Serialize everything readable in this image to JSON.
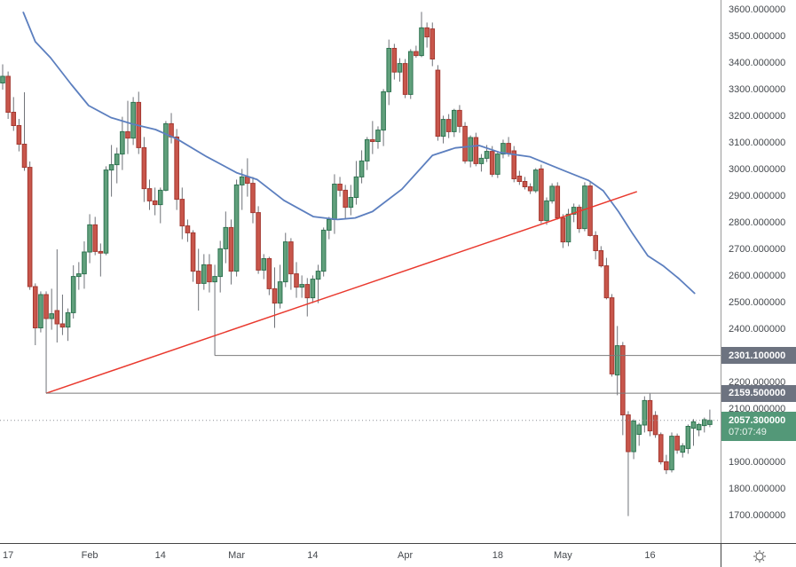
{
  "colors": {
    "up_fill": "#61a07c",
    "up_stroke": "#2e7350",
    "down_fill": "#c8564b",
    "down_stroke": "#a43931",
    "wick": "#6f7278",
    "ma_line": "#5c7fbf",
    "trendline": "#e9392e",
    "ray_line": "#7b7b7b",
    "last_price_line": "#8c8f96",
    "badge_gray": "#6d7380",
    "badge_green": "#539878",
    "axis_text": "#45494e"
  },
  "chart_data": {
    "type": "candlestick",
    "title": "",
    "ylim": [
      1597,
      3637
    ],
    "y_axis": {
      "tick_decimals": 6,
      "ticks": [
        3600,
        3500,
        3400,
        3300,
        3200,
        3100,
        3000,
        2900,
        2800,
        2700,
        2600,
        2500,
        2400,
        2200,
        2100,
        1900,
        1800,
        1700
      ]
    },
    "x_axis": {
      "labels": [
        {
          "text": "17",
          "i": 1
        },
        {
          "text": "Feb",
          "i": 16
        },
        {
          "text": "14",
          "i": 29
        },
        {
          "text": "Mar",
          "i": 43
        },
        {
          "text": "14",
          "i": 57
        },
        {
          "text": "Apr",
          "i": 74
        },
        {
          "text": "18",
          "i": 91
        },
        {
          "text": "May",
          "i": 103
        },
        {
          "text": "16",
          "i": 119
        }
      ]
    },
    "candles_ohlc": [
      [
        3325,
        3395,
        3300,
        3350
      ],
      [
        3350,
        3368,
        3190,
        3215
      ],
      [
        3215,
        3272,
        3145,
        3165
      ],
      [
        3165,
        3190,
        3068,
        3095
      ],
      [
        3095,
        3290,
        2995,
        3008
      ],
      [
        3008,
        3030,
        2548,
        2560
      ],
      [
        2560,
        2572,
        2340,
        2405
      ],
      [
        2405,
        2542,
        2388,
        2530
      ],
      [
        2530,
        2542,
        2159.5,
        2440
      ],
      [
        2440,
        2552,
        2398,
        2458
      ],
      [
        2470,
        2700,
        2350,
        2420
      ],
      [
        2420,
        2530,
        2378,
        2408
      ],
      [
        2408,
        2478,
        2356,
        2462
      ],
      [
        2462,
        2640,
        2440,
        2598
      ],
      [
        2598,
        2652,
        2548,
        2608
      ],
      [
        2608,
        2730,
        2552,
        2690
      ],
      [
        2690,
        2832,
        2648,
        2792
      ],
      [
        2792,
        2822,
        2678,
        2692
      ],
      [
        2692,
        2722,
        2598,
        2686
      ],
      [
        2686,
        3012,
        2678,
        2998
      ],
      [
        2998,
        3092,
        2898,
        3018
      ],
      [
        3018,
        3082,
        2948,
        3058
      ],
      [
        3058,
        3198,
        2998,
        3142
      ],
      [
        3142,
        3258,
        3058,
        3118
      ],
      [
        3118,
        3272,
        3092,
        3252
      ],
      [
        3252,
        3292,
        3058,
        3082
      ],
      [
        3082,
        3122,
        2878,
        2928
      ],
      [
        2928,
        2962,
        2848,
        2882
      ],
      [
        2882,
        2932,
        2828,
        2868
      ],
      [
        2868,
        2932,
        2798,
        2922
      ],
      [
        2922,
        3182,
        2918,
        3172
      ],
      [
        3172,
        3212,
        3098,
        3122
      ],
      [
        3122,
        3152,
        2848,
        2888
      ],
      [
        2888,
        2932,
        2738,
        2788
      ],
      [
        2788,
        2812,
        2728,
        2762
      ],
      [
        2762,
        2772,
        2578,
        2618
      ],
      [
        2618,
        2702,
        2470,
        2572
      ],
      [
        2572,
        2682,
        2548,
        2642
      ],
      [
        2642,
        2682,
        2538,
        2578
      ],
      [
        2578,
        2642,
        2301.1,
        2598
      ],
      [
        2598,
        2732,
        2538,
        2702
      ],
      [
        2702,
        2842,
        2648,
        2782
      ],
      [
        2782,
        2812,
        2568,
        2618
      ],
      [
        2618,
        2962,
        2598,
        2942
      ],
      [
        2942,
        3002,
        2848,
        2972
      ],
      [
        2972,
        3042,
        2898,
        2948
      ],
      [
        2948,
        2972,
        2798,
        2838
      ],
      [
        2838,
        2862,
        2608,
        2622
      ],
      [
        2622,
        2682,
        2588,
        2665
      ],
      [
        2665,
        2672,
        2528,
        2552
      ],
      [
        2552,
        2632,
        2405,
        2498
      ],
      [
        2498,
        2642,
        2478,
        2578
      ],
      [
        2578,
        2762,
        2558,
        2728
      ],
      [
        2728,
        2742,
        2548,
        2608
      ],
      [
        2608,
        2652,
        2518,
        2558
      ],
      [
        2558,
        2602,
        2518,
        2568
      ],
      [
        2568,
        2592,
        2448,
        2518
      ],
      [
        2518,
        2602,
        2498,
        2588
      ],
      [
        2588,
        2642,
        2498,
        2618
      ],
      [
        2618,
        2782,
        2598,
        2772
      ],
      [
        2772,
        2822,
        2738,
        2812
      ],
      [
        2812,
        2982,
        2758,
        2945
      ],
      [
        2945,
        2972,
        2898,
        2922
      ],
      [
        2922,
        2942,
        2812,
        2858
      ],
      [
        2858,
        2942,
        2828,
        2895
      ],
      [
        2895,
        3032,
        2868,
        2972
      ],
      [
        2972,
        3072,
        2948,
        3032
      ],
      [
        3032,
        3122,
        2998,
        3112
      ],
      [
        3112,
        3182,
        3058,
        3105
      ],
      [
        3105,
        3162,
        3078,
        3148
      ],
      [
        3148,
        3302,
        3088,
        3292
      ],
      [
        3292,
        3488,
        3242,
        3455
      ],
      [
        3455,
        3472,
        3338,
        3366
      ],
      [
        3366,
        3418,
        3330,
        3398
      ],
      [
        3398,
        3415,
        3268,
        3282
      ],
      [
        3282,
        3452,
        3265,
        3443
      ],
      [
        3443,
        3465,
        3420,
        3428
      ],
      [
        3428,
        3592,
        3422,
        3532
      ],
      [
        3532,
        3552,
        3458,
        3498
      ],
      [
        3528,
        3552,
        3388,
        3415
      ],
      [
        3373,
        3392,
        3108,
        3125
      ],
      [
        3125,
        3202,
        3098,
        3188
      ],
      [
        3188,
        3208,
        3118,
        3142
      ],
      [
        3142,
        3228,
        3122,
        3222
      ],
      [
        3222,
        3242,
        3138,
        3162
      ],
      [
        3162,
        3178,
        3022,
        3032
      ],
      [
        3032,
        3128,
        3008,
        3120
      ],
      [
        3120,
        3138,
        3012,
        3022
      ],
      [
        3022,
        3058,
        2992,
        3042
      ],
      [
        3042,
        3092,
        3028,
        3068
      ],
      [
        3068,
        3088,
        2972,
        2982
      ],
      [
        2982,
        3068,
        2968,
        3058
      ],
      [
        3058,
        3112,
        3042,
        3098
      ],
      [
        3098,
        3122,
        3048,
        3060
      ],
      [
        3070,
        3088,
        2952,
        2965
      ],
      [
        2975,
        2995,
        2942,
        2955
      ],
      [
        2955,
        2972,
        2925,
        2935
      ],
      [
        2935,
        2948,
        2908,
        2920
      ],
      [
        2920,
        3005,
        2912,
        2998
      ],
      [
        3002,
        3018,
        2798,
        2808
      ],
      [
        2808,
        2895,
        2792,
        2882
      ],
      [
        2882,
        2948,
        2872,
        2937
      ],
      [
        2937,
        2952,
        2812,
        2818
      ],
      [
        2818,
        2832,
        2705,
        2728
      ],
      [
        2728,
        2852,
        2712,
        2832
      ],
      [
        2832,
        2872,
        2802,
        2858
      ],
      [
        2858,
        2868,
        2762,
        2778
      ],
      [
        2778,
        2952,
        2768,
        2938
      ],
      [
        2938,
        2952,
        2748,
        2752
      ],
      [
        2752,
        2768,
        2662,
        2695
      ],
      [
        2695,
        2712,
        2632,
        2638
      ],
      [
        2638,
        2668,
        2512,
        2518
      ],
      [
        2518,
        2532,
        2222,
        2232
      ],
      [
        2228,
        2412,
        2152,
        2338
      ],
      [
        2338,
        2352,
        2002,
        2078
      ],
      [
        2078,
        2092,
        1698,
        1940
      ],
      [
        1940,
        2062,
        1912,
        2055
      ],
      [
        2005,
        2048,
        1962,
        2040
      ],
      [
        2040,
        2148,
        2012,
        2132
      ],
      [
        2132,
        2158,
        1998,
        2018
      ],
      [
        2076,
        2092,
        1992,
        2004
      ],
      [
        2004,
        2012,
        1892,
        1902
      ],
      [
        1902,
        1928,
        1856,
        1872
      ],
      [
        1872,
        2012,
        1862,
        1998
      ],
      [
        1998,
        2008,
        1932,
        1946
      ],
      [
        1938,
        1972,
        1918,
        1962
      ],
      [
        1952,
        2042,
        1932,
        2035
      ],
      [
        2028,
        2062,
        1962,
        2052
      ],
      [
        2022,
        2048,
        1998,
        2042
      ],
      [
        2038,
        2068,
        2012,
        2060
      ],
      [
        2042,
        2098,
        2032,
        2057.3
      ]
    ],
    "ma_line_points": [
      {
        "i": 3.8,
        "p": 3590
      },
      {
        "i": 6,
        "p": 3480
      },
      {
        "i": 8.8,
        "p": 3420
      },
      {
        "i": 12.6,
        "p": 3320
      },
      {
        "i": 15.8,
        "p": 3240
      },
      {
        "i": 19.9,
        "p": 3195
      },
      {
        "i": 24,
        "p": 3170
      },
      {
        "i": 28.1,
        "p": 3150
      },
      {
        "i": 32.1,
        "p": 3114
      },
      {
        "i": 37.5,
        "p": 3048
      },
      {
        "i": 43.1,
        "p": 2987
      },
      {
        "i": 46.8,
        "p": 2962
      },
      {
        "i": 51.7,
        "p": 2884
      },
      {
        "i": 57.1,
        "p": 2823
      },
      {
        "i": 61.5,
        "p": 2812
      },
      {
        "i": 64.8,
        "p": 2818
      },
      {
        "i": 68,
        "p": 2842
      },
      {
        "i": 73.4,
        "p": 2926
      },
      {
        "i": 79,
        "p": 3053
      },
      {
        "i": 83.2,
        "p": 3081
      },
      {
        "i": 87.6,
        "p": 3090
      },
      {
        "i": 91.4,
        "p": 3064
      },
      {
        "i": 96.9,
        "p": 3048
      },
      {
        "i": 102.3,
        "p": 3003
      },
      {
        "i": 107.7,
        "p": 2959
      },
      {
        "i": 110.4,
        "p": 2920
      },
      {
        "i": 113.2,
        "p": 2842
      },
      {
        "i": 115.8,
        "p": 2759
      },
      {
        "i": 118.6,
        "p": 2676
      },
      {
        "i": 121.5,
        "p": 2637
      },
      {
        "i": 124.3,
        "p": 2590
      },
      {
        "i": 127.2,
        "p": 2535
      }
    ],
    "trendline": {
      "i1": 8,
      "p1": 2159.5,
      "i2": 116.6,
      "p2": 2917
    },
    "rays": [
      {
        "i": 39,
        "price": 2301.1,
        "label": "2301.100000"
      },
      {
        "i": 8,
        "price": 2159.5,
        "label": "2159.500000"
      }
    ],
    "last_price": {
      "value": 2057.3,
      "label": "2057.300000",
      "time": "07:07:49"
    }
  },
  "corner": {
    "gear_icon": "axis-settings-gear"
  }
}
